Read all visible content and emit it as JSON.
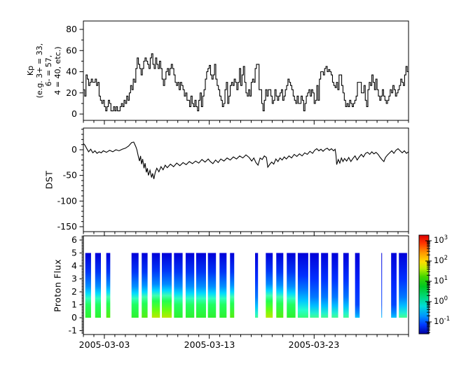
{
  "figure": {
    "background": "#ffffff",
    "frame_color": "#000000",
    "curve_color": "#000000"
  },
  "x_axis": {
    "start_date": "2005-03-01",
    "days_total": 31,
    "minor_tick_interval_days": 1,
    "major_tick_days": [
      2,
      12,
      22
    ],
    "major_tick_labels": [
      "2005-03-03",
      "2005-03-13",
      "2005-03-23"
    ]
  },
  "panels": {
    "kp": {
      "ylabel_lines": [
        "Kp",
        "(e.g. 3+ = 33,",
        "6- = 57,",
        "4 = 40, etc.)"
      ],
      "ytick_labels": [
        "0",
        "20",
        "40",
        "60",
        "80"
      ]
    },
    "dst": {
      "ylabel": "DST",
      "ytick_labels": [
        "0",
        "-50",
        "-100",
        "-150"
      ]
    },
    "proton": {
      "ylabel": "Proton Flux",
      "ytick_labels": [
        "-1",
        "0",
        "1",
        "2",
        "3",
        "4",
        "5",
        "6"
      ]
    }
  },
  "colorbar": {
    "scale": "log",
    "tick_exponents": [
      3,
      2,
      1,
      0,
      -1
    ],
    "tick_labels": [
      "10^3",
      "10^2",
      "10^1",
      "10^0",
      "10^-1"
    ],
    "stops": [
      [
        0,
        "#dd0000"
      ],
      [
        0.08,
        "#ff3300"
      ],
      [
        0.18,
        "#ff9900"
      ],
      [
        0.27,
        "#ffdd00"
      ],
      [
        0.34,
        "#bbee00"
      ],
      [
        0.42,
        "#44d500"
      ],
      [
        0.52,
        "#00c822"
      ],
      [
        0.62,
        "#00d877"
      ],
      [
        0.72,
        "#00dcd8"
      ],
      [
        0.82,
        "#0094ff"
      ],
      [
        0.91,
        "#0038ff"
      ],
      [
        1,
        "#0000a0"
      ]
    ]
  },
  "chart_data": [
    {
      "type": "line",
      "subtype": "step",
      "ylabel": "Kp (e.g. 3+ = 33, 6- = 57, 4 = 40, etc.)",
      "x_start": "2005-03-01T00:00",
      "x_interval_hours": 3,
      "ylim": [
        -6,
        88
      ],
      "yticks": [
        0,
        20,
        40,
        60,
        80
      ],
      "ytick_minor_interval": 10,
      "values": [
        23,
        17,
        37,
        33,
        27,
        30,
        33,
        30,
        30,
        33,
        27,
        30,
        17,
        13,
        10,
        13,
        7,
        3,
        7,
        13,
        10,
        3,
        3,
        7,
        3,
        7,
        3,
        3,
        7,
        10,
        7,
        13,
        10,
        17,
        13,
        20,
        27,
        23,
        33,
        30,
        43,
        53,
        47,
        43,
        37,
        43,
        50,
        53,
        50,
        47,
        43,
        53,
        57,
        47,
        43,
        53,
        47,
        43,
        50,
        43,
        33,
        27,
        33,
        40,
        43,
        37,
        43,
        47,
        43,
        37,
        30,
        27,
        30,
        23,
        30,
        27,
        23,
        17,
        20,
        13,
        13,
        7,
        17,
        10,
        7,
        13,
        7,
        3,
        13,
        20,
        7,
        17,
        23,
        33,
        40,
        43,
        46,
        37,
        33,
        37,
        47,
        33,
        27,
        23,
        17,
        13,
        7,
        10,
        23,
        30,
        10,
        17,
        27,
        30,
        27,
        33,
        30,
        23,
        30,
        43,
        27,
        37,
        45,
        30,
        20,
        17,
        23,
        17,
        30,
        33,
        30,
        43,
        47,
        47,
        23,
        23,
        10,
        3,
        13,
        23,
        17,
        23,
        23,
        17,
        10,
        13,
        23,
        17,
        13,
        17,
        20,
        23,
        13,
        17,
        23,
        27,
        33,
        30,
        27,
        23,
        17,
        13,
        10,
        17,
        10,
        10,
        17,
        13,
        3,
        10,
        17,
        20,
        23,
        17,
        23,
        20,
        10,
        13,
        27,
        13,
        33,
        40,
        40,
        37,
        43,
        45,
        40,
        42,
        40,
        37,
        30,
        27,
        25,
        30,
        23,
        37,
        37,
        27,
        20,
        13,
        7,
        10,
        7,
        13,
        10,
        7,
        10,
        13,
        17,
        30,
        30,
        30,
        20,
        20,
        27,
        13,
        7,
        23,
        30,
        27,
        37,
        30,
        23,
        33,
        23,
        17,
        13,
        17,
        23,
        17,
        13,
        10,
        13,
        17,
        23,
        20,
        27,
        23,
        17,
        20,
        23,
        27,
        33,
        30,
        27,
        37,
        45,
        40
      ]
    },
    {
      "type": "line",
      "ylabel": "DST",
      "ylim": [
        -159,
        43
      ],
      "yticks": [
        0,
        -50,
        -100,
        -150
      ],
      "ytick_minor_interval": 10,
      "points_day_value": [
        [
          0,
          12
        ],
        [
          0.15,
          9
        ],
        [
          0.3,
          3
        ],
        [
          0.5,
          -4
        ],
        [
          0.7,
          1
        ],
        [
          0.9,
          -6
        ],
        [
          1.1,
          -2
        ],
        [
          1.3,
          -7
        ],
        [
          1.5,
          -4
        ],
        [
          1.7,
          -6
        ],
        [
          1.9,
          -2
        ],
        [
          2.2,
          -5
        ],
        [
          2.5,
          -1
        ],
        [
          2.8,
          -4
        ],
        [
          3.1,
          0
        ],
        [
          3.4,
          -2
        ],
        [
          3.7,
          1
        ],
        [
          4,
          3
        ],
        [
          4.3,
          7
        ],
        [
          4.6,
          14
        ],
        [
          4.8,
          15
        ],
        [
          5,
          6
        ],
        [
          5.1,
          0
        ],
        [
          5.25,
          -14
        ],
        [
          5.35,
          -22
        ],
        [
          5.45,
          -12
        ],
        [
          5.55,
          -28
        ],
        [
          5.65,
          -18
        ],
        [
          5.78,
          -36
        ],
        [
          5.88,
          -26
        ],
        [
          6,
          -44
        ],
        [
          6.1,
          -36
        ],
        [
          6.2,
          -50
        ],
        [
          6.35,
          -40
        ],
        [
          6.5,
          -54
        ],
        [
          6.6,
          -46
        ],
        [
          6.72,
          -57
        ],
        [
          6.85,
          -44
        ],
        [
          7,
          -36
        ],
        [
          7.2,
          -43
        ],
        [
          7.4,
          -33
        ],
        [
          7.6,
          -39
        ],
        [
          7.8,
          -30
        ],
        [
          8,
          -35
        ],
        [
          8.3,
          -28
        ],
        [
          8.6,
          -33
        ],
        [
          8.9,
          -26
        ],
        [
          9.2,
          -31
        ],
        [
          9.5,
          -25
        ],
        [
          9.8,
          -29
        ],
        [
          10.1,
          -23
        ],
        [
          10.4,
          -27
        ],
        [
          10.7,
          -22
        ],
        [
          11,
          -26
        ],
        [
          11.3,
          -19
        ],
        [
          11.6,
          -24
        ],
        [
          11.9,
          -18
        ],
        [
          12.1,
          -23
        ],
        [
          12.35,
          -27
        ],
        [
          12.6,
          -20
        ],
        [
          12.85,
          -25
        ],
        [
          13.1,
          -18
        ],
        [
          13.4,
          -22
        ],
        [
          13.7,
          -16
        ],
        [
          14,
          -20
        ],
        [
          14.3,
          -14
        ],
        [
          14.6,
          -18
        ],
        [
          14.9,
          -12
        ],
        [
          15.2,
          -16
        ],
        [
          15.5,
          -10
        ],
        [
          15.8,
          -15
        ],
        [
          16.05,
          -22
        ],
        [
          16.25,
          -16
        ],
        [
          16.45,
          -25
        ],
        [
          16.65,
          -30
        ],
        [
          16.85,
          -16
        ],
        [
          17.05,
          -19
        ],
        [
          17.25,
          -12
        ],
        [
          17.45,
          -15
        ],
        [
          17.58,
          -34
        ],
        [
          17.75,
          -29
        ],
        [
          17.95,
          -24
        ],
        [
          18.15,
          -28
        ],
        [
          18.35,
          -18
        ],
        [
          18.55,
          -23
        ],
        [
          18.75,
          -16
        ],
        [
          18.95,
          -20
        ],
        [
          19.15,
          -14
        ],
        [
          19.35,
          -18
        ],
        [
          19.6,
          -12
        ],
        [
          19.85,
          -16
        ],
        [
          20.1,
          -9
        ],
        [
          20.35,
          -13
        ],
        [
          20.6,
          -8
        ],
        [
          20.85,
          -12
        ],
        [
          21.1,
          -6
        ],
        [
          21.35,
          -9
        ],
        [
          21.6,
          -3
        ],
        [
          21.85,
          -7
        ],
        [
          22.05,
          -1
        ],
        [
          22.25,
          2
        ],
        [
          22.45,
          -2
        ],
        [
          22.65,
          1
        ],
        [
          22.85,
          -3
        ],
        [
          23.05,
          1
        ],
        [
          23.25,
          3
        ],
        [
          23.45,
          -1
        ],
        [
          23.65,
          2
        ],
        [
          23.85,
          -2
        ],
        [
          24,
          1
        ],
        [
          24.08,
          -10
        ],
        [
          24.15,
          -29
        ],
        [
          24.3,
          -19
        ],
        [
          24.45,
          -26
        ],
        [
          24.6,
          -16
        ],
        [
          24.75,
          -23
        ],
        [
          24.9,
          -17
        ],
        [
          25.1,
          -22
        ],
        [
          25.3,
          -15
        ],
        [
          25.5,
          -23
        ],
        [
          25.7,
          -17
        ],
        [
          25.9,
          -12
        ],
        [
          26.1,
          -20
        ],
        [
          26.3,
          -14
        ],
        [
          26.5,
          -9
        ],
        [
          26.7,
          -14
        ],
        [
          26.9,
          -7
        ],
        [
          27.1,
          -5
        ],
        [
          27.3,
          -9
        ],
        [
          27.5,
          -4
        ],
        [
          27.7,
          -8
        ],
        [
          27.9,
          -5
        ],
        [
          28.1,
          -9
        ],
        [
          28.3,
          -15
        ],
        [
          28.5,
          -20
        ],
        [
          28.65,
          -23
        ],
        [
          28.8,
          -15
        ],
        [
          29,
          -10
        ],
        [
          29.2,
          -6
        ],
        [
          29.4,
          -2
        ],
        [
          29.6,
          -7
        ],
        [
          29.8,
          -1
        ],
        [
          30,
          2
        ],
        [
          30.2,
          -2
        ],
        [
          30.4,
          -6
        ],
        [
          30.6,
          -2
        ],
        [
          30.8,
          -7
        ],
        [
          31,
          -4
        ]
      ]
    },
    {
      "type": "heatmap",
      "ylabel": "Proton Flux",
      "ylim": [
        -1.3,
        6.33
      ],
      "yticks": [
        -1,
        0,
        1,
        2,
        3,
        4,
        5,
        6
      ],
      "ytick_minor_interval": 0.1,
      "bar_value_range": [
        0,
        5
      ],
      "color_scale": "log 10^-1 .. 10^3",
      "bars": [
        {
          "day_start": 0.18,
          "day_end": 0.73,
          "gradient": "A"
        },
        {
          "day_start": 1.12,
          "day_end": 1.67,
          "gradient": "A"
        },
        {
          "day_start": 2.18,
          "day_end": 2.56,
          "gradient": "A2"
        },
        {
          "day_start": 4.59,
          "day_end": 5.26,
          "gradient": "A"
        },
        {
          "day_start": 5.56,
          "day_end": 6.12,
          "gradient": "A2"
        },
        {
          "day_start": 6.53,
          "day_end": 7.3,
          "gradient": "B"
        },
        {
          "day_start": 7.48,
          "day_end": 8.42,
          "gradient": "B"
        },
        {
          "day_start": 8.64,
          "day_end": 9.46,
          "gradient": "A"
        },
        {
          "day_start": 9.75,
          "day_end": 10.57,
          "gradient": "A"
        },
        {
          "day_start": 10.75,
          "day_end": 11.69,
          "gradient": "A"
        },
        {
          "day_start": 11.87,
          "day_end": 12.64,
          "gradient": "A"
        },
        {
          "day_start": 12.98,
          "day_end": 13.65,
          "gradient": "A"
        },
        {
          "day_start": 13.98,
          "day_end": 14.38,
          "gradient": "A2"
        },
        {
          "day_start": 16.37,
          "day_end": 16.65,
          "gradient": "C"
        },
        {
          "day_start": 17.39,
          "day_end": 18.05,
          "gradient": "B"
        },
        {
          "day_start": 18.39,
          "day_end": 19.06,
          "gradient": "A2"
        },
        {
          "day_start": 19.39,
          "day_end": 20.22,
          "gradient": "A"
        },
        {
          "day_start": 20.44,
          "day_end": 21.44,
          "gradient": "C2"
        },
        {
          "day_start": 21.6,
          "day_end": 22.44,
          "gradient": "C"
        },
        {
          "day_start": 22.66,
          "day_end": 23.33,
          "gradient": "C"
        },
        {
          "day_start": 23.67,
          "day_end": 24.29,
          "gradient": "C"
        },
        {
          "day_start": 24.78,
          "day_end": 25.3,
          "gradient": "C"
        },
        {
          "day_start": 25.9,
          "day_end": 26.34,
          "gradient": "D"
        },
        {
          "day_start": 28.41,
          "day_end": 28.47,
          "gradient": "D"
        },
        {
          "day_start": 29.34,
          "day_end": 29.86,
          "gradient": "D"
        },
        {
          "day_start": 30.08,
          "day_end": 30.86,
          "gradient": "C"
        }
      ],
      "gradients": {
        "A": [
          [
            0,
            "#0000d8"
          ],
          [
            0.3,
            "#0038f8"
          ],
          [
            0.52,
            "#0090ff"
          ],
          [
            0.62,
            "#00d8ff"
          ],
          [
            0.7,
            "#30ffc0"
          ],
          [
            0.8,
            "#20ff60"
          ],
          [
            1,
            "#2ef22e"
          ]
        ],
        "A2": [
          [
            0,
            "#0000d8"
          ],
          [
            0.3,
            "#0038f8"
          ],
          [
            0.5,
            "#0090ff"
          ],
          [
            0.6,
            "#00d8ff"
          ],
          [
            0.68,
            "#40ffb0"
          ],
          [
            0.78,
            "#22ff55"
          ],
          [
            1,
            "#55ee11"
          ]
        ],
        "B": [
          [
            0,
            "#0000d8"
          ],
          [
            0.28,
            "#0038f8"
          ],
          [
            0.48,
            "#0088ff"
          ],
          [
            0.58,
            "#00d8ff"
          ],
          [
            0.66,
            "#40ffb0"
          ],
          [
            0.74,
            "#22ff50"
          ],
          [
            0.88,
            "#66ff11"
          ],
          [
            1,
            "#bbe800"
          ]
        ],
        "C": [
          [
            0,
            "#0000d8"
          ],
          [
            0.4,
            "#0030ff"
          ],
          [
            0.68,
            "#0078ff"
          ],
          [
            0.82,
            "#00c0ff"
          ],
          [
            0.93,
            "#22f0d0"
          ],
          [
            1,
            "#44ff90"
          ]
        ],
        "C2": [
          [
            0,
            "#0000d8"
          ],
          [
            0.35,
            "#0030ff"
          ],
          [
            0.58,
            "#0080ff"
          ],
          [
            0.74,
            "#00c8ff"
          ],
          [
            0.88,
            "#22ffd0"
          ],
          [
            1,
            "#33ff77"
          ]
        ],
        "D": [
          [
            0,
            "#0000d8"
          ],
          [
            0.5,
            "#0028ff"
          ],
          [
            0.8,
            "#0048ff"
          ],
          [
            0.93,
            "#0090ff"
          ],
          [
            1,
            "#00c8ff"
          ]
        ]
      }
    }
  ]
}
